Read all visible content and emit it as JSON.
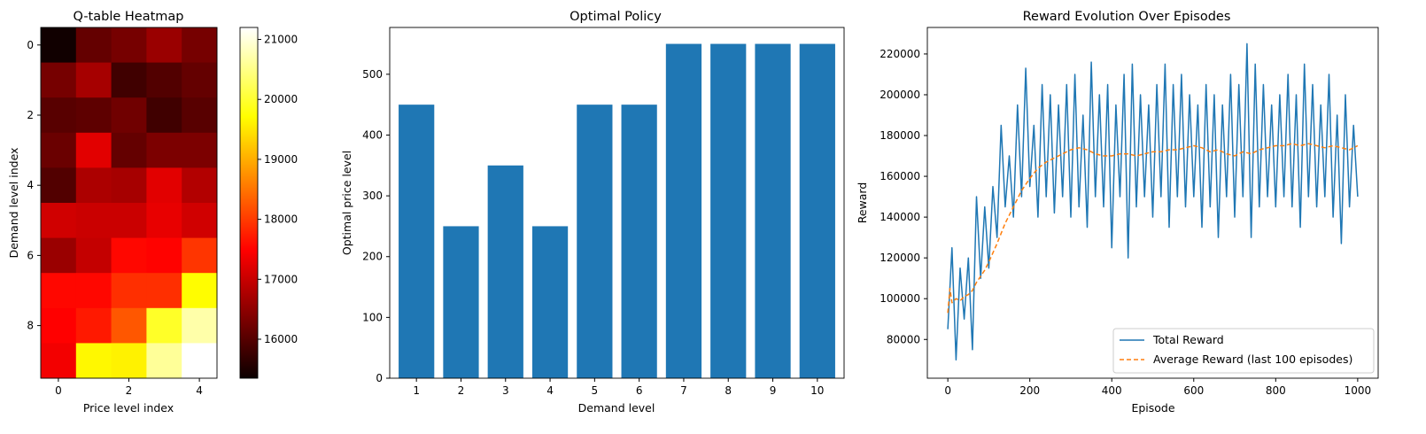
{
  "chart_data": [
    {
      "type": "heatmap",
      "title": "Q-table Heatmap",
      "xlabel": "Price level index",
      "ylabel": "Demand level index",
      "xticks": [
        0,
        2,
        4
      ],
      "yticks": [
        0,
        2,
        4,
        6,
        8
      ],
      "colormap": "hot",
      "vmin": 15350,
      "vmax": 21200,
      "colorbar_ticks": [
        16000,
        17000,
        18000,
        19000,
        20000,
        21000
      ],
      "values": [
        [
          15400,
          16100,
          16250,
          16550,
          16250
        ],
        [
          16250,
          16650,
          15800,
          15950,
          16100
        ],
        [
          16000,
          16050,
          16200,
          15800,
          16000
        ],
        [
          16150,
          17150,
          16100,
          16300,
          16300
        ],
        [
          15950,
          16700,
          16650,
          17150,
          16750
        ],
        [
          17000,
          16950,
          16950,
          17200,
          17000
        ],
        [
          16550,
          16900,
          17550,
          17500,
          17950
        ],
        [
          17550,
          17550,
          17900,
          17900,
          19700
        ],
        [
          17450,
          17700,
          18250,
          19950,
          20700
        ],
        [
          17300,
          19650,
          19600,
          20600,
          21200
        ]
      ]
    },
    {
      "type": "bar",
      "title": "Optimal Policy",
      "xlabel": "Demand level",
      "ylabel": "Optimal price level",
      "categories": [
        "1",
        "2",
        "3",
        "4",
        "5",
        "6",
        "7",
        "8",
        "9",
        "10"
      ],
      "values": [
        450,
        250,
        350,
        250,
        450,
        450,
        550,
        550,
        550,
        550
      ],
      "ylim": [
        0,
        577
      ],
      "yticks": [
        0,
        100,
        200,
        300,
        400,
        500
      ],
      "color": "#1f77b4"
    },
    {
      "type": "line",
      "title": "Reward Evolution Over Episodes",
      "xlabel": "Episode",
      "ylabel": "Reward",
      "xlim": [
        -50,
        1050
      ],
      "ylim": [
        61000,
        233000
      ],
      "xticks": [
        0,
        200,
        400,
        600,
        800,
        1000
      ],
      "yticks": [
        80000,
        100000,
        120000,
        140000,
        160000,
        180000,
        200000,
        220000
      ],
      "legend_position": "lower right",
      "series": [
        {
          "name": "Total Reward",
          "color": "#1f77b4",
          "style": "solid",
          "points": [
            [
              0,
              85000
            ],
            [
              10,
              125000
            ],
            [
              20,
              70000
            ],
            [
              30,
              115000
            ],
            [
              40,
              90000
            ],
            [
              50,
              120000
            ],
            [
              60,
              75000
            ],
            [
              70,
              150000
            ],
            [
              80,
              110000
            ],
            [
              90,
              145000
            ],
            [
              100,
              115000
            ],
            [
              110,
              155000
            ],
            [
              120,
              130000
            ],
            [
              130,
              185000
            ],
            [
              140,
              145000
            ],
            [
              150,
              170000
            ],
            [
              160,
              140000
            ],
            [
              170,
              195000
            ],
            [
              180,
              150000
            ],
            [
              190,
              213000
            ],
            [
              200,
              155000
            ],
            [
              210,
              185000
            ],
            [
              220,
              140000
            ],
            [
              230,
              205000
            ],
            [
              240,
              150000
            ],
            [
              250,
              200000
            ],
            [
              260,
              142000
            ],
            [
              270,
              195000
            ],
            [
              280,
              150000
            ],
            [
              290,
              205000
            ],
            [
              300,
              140000
            ],
            [
              310,
              210000
            ],
            [
              320,
              145000
            ],
            [
              330,
              190000
            ],
            [
              340,
              135000
            ],
            [
              350,
              216000
            ],
            [
              360,
              150000
            ],
            [
              370,
              200000
            ],
            [
              380,
              145000
            ],
            [
              390,
              205000
            ],
            [
              400,
              125000
            ],
            [
              410,
              195000
            ],
            [
              420,
              150000
            ],
            [
              430,
              210000
            ],
            [
              440,
              120000
            ],
            [
              450,
              215000
            ],
            [
              460,
              145000
            ],
            [
              470,
              200000
            ],
            [
              480,
              150000
            ],
            [
              490,
              195000
            ],
            [
              500,
              140000
            ],
            [
              510,
              205000
            ],
            [
              520,
              150000
            ],
            [
              530,
              215000
            ],
            [
              540,
              135000
            ],
            [
              550,
              205000
            ],
            [
              560,
              150000
            ],
            [
              570,
              210000
            ],
            [
              580,
              145000
            ],
            [
              590,
              200000
            ],
            [
              600,
              150000
            ],
            [
              610,
              195000
            ],
            [
              620,
              135000
            ],
            [
              630,
              205000
            ],
            [
              640,
              145000
            ],
            [
              650,
              200000
            ],
            [
              660,
              130000
            ],
            [
              670,
              195000
            ],
            [
              680,
              150000
            ],
            [
              690,
              210000
            ],
            [
              700,
              140000
            ],
            [
              710,
              205000
            ],
            [
              720,
              150000
            ],
            [
              730,
              225000
            ],
            [
              740,
              130000
            ],
            [
              750,
              215000
            ],
            [
              760,
              145000
            ],
            [
              770,
              205000
            ],
            [
              780,
              150000
            ],
            [
              790,
              195000
            ],
            [
              800,
              145000
            ],
            [
              810,
              200000
            ],
            [
              820,
              150000
            ],
            [
              830,
              210000
            ],
            [
              840,
              145000
            ],
            [
              850,
              200000
            ],
            [
              860,
              135000
            ],
            [
              870,
              215000
            ],
            [
              880,
              150000
            ],
            [
              890,
              205000
            ],
            [
              900,
              145000
            ],
            [
              910,
              195000
            ],
            [
              920,
              150000
            ],
            [
              930,
              210000
            ],
            [
              940,
              140000
            ],
            [
              950,
              190000
            ],
            [
              960,
              127000
            ],
            [
              970,
              200000
            ],
            [
              980,
              145000
            ],
            [
              990,
              185000
            ],
            [
              1000,
              150000
            ]
          ]
        },
        {
          "name": "Average Reward (last 100 episodes)",
          "color": "#ff7f0e",
          "style": "dashed",
          "points": [
            [
              0,
              93000
            ],
            [
              5,
              105000
            ],
            [
              10,
              98000
            ],
            [
              20,
              100000
            ],
            [
              30,
              99000
            ],
            [
              40,
              101000
            ],
            [
              50,
              102000
            ],
            [
              60,
              104000
            ],
            [
              70,
              108000
            ],
            [
              80,
              111000
            ],
            [
              90,
              114000
            ],
            [
              100,
              118000
            ],
            [
              120,
              127000
            ],
            [
              140,
              137000
            ],
            [
              160,
              145000
            ],
            [
              180,
              153000
            ],
            [
              200,
              159000
            ],
            [
              220,
              164000
            ],
            [
              240,
              167000
            ],
            [
              260,
              169000
            ],
            [
              280,
              171000
            ],
            [
              300,
              173000
            ],
            [
              320,
              174000
            ],
            [
              340,
              173000
            ],
            [
              360,
              171000
            ],
            [
              380,
              170000
            ],
            [
              400,
              170000
            ],
            [
              420,
              171000
            ],
            [
              440,
              171000
            ],
            [
              460,
              170000
            ],
            [
              480,
              171000
            ],
            [
              500,
              172000
            ],
            [
              520,
              172000
            ],
            [
              540,
              173000
            ],
            [
              560,
              173000
            ],
            [
              580,
              174000
            ],
            [
              600,
              175000
            ],
            [
              620,
              174000
            ],
            [
              640,
              172000
            ],
            [
              660,
              173000
            ],
            [
              680,
              171000
            ],
            [
              700,
              170000
            ],
            [
              720,
              172000
            ],
            [
              740,
              171000
            ],
            [
              760,
              173000
            ],
            [
              780,
              174000
            ],
            [
              800,
              175000
            ],
            [
              820,
              175000
            ],
            [
              840,
              176000
            ],
            [
              860,
              175000
            ],
            [
              880,
              176000
            ],
            [
              900,
              175000
            ],
            [
              920,
              174000
            ],
            [
              940,
              175000
            ],
            [
              960,
              174000
            ],
            [
              980,
              173000
            ],
            [
              1000,
              175000
            ]
          ]
        }
      ]
    }
  ]
}
